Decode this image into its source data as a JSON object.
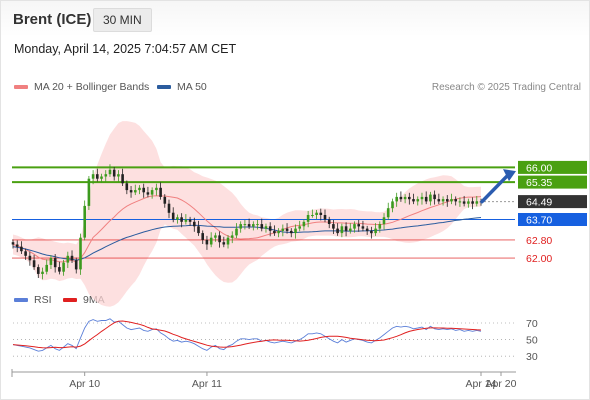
{
  "header": {
    "instrument": "Brent (ICE)",
    "timeframe": "30 MIN",
    "datetime": "Monday, April 14, 2025 7:04:57 AM CET"
  },
  "legend": {
    "ma20": {
      "label": "MA 20 + Bollinger Bands",
      "color": "#f08080"
    },
    "ma50": {
      "label": "MA 50",
      "color": "#2b5c9e"
    },
    "credit": "Research © 2025 Trading Central"
  },
  "rsi_legend": {
    "rsi": {
      "label": "RSI",
      "color": "#5b7fd8"
    },
    "ma9": {
      "label": "9MA",
      "color": "#e02020"
    }
  },
  "chart_data": [
    {
      "type": "candlestick",
      "title": "Brent (ICE)",
      "timeframe": "30 MIN",
      "y_range": [
        60.9,
        68.4
      ],
      "x_tick_labels": [
        "Apr 10",
        "Apr 11",
        "Apr 14",
        "Apr 20"
      ],
      "levels": [
        {
          "value": 66.0,
          "label": "66.00",
          "kind": "resistance",
          "color": "#4aa011"
        },
        {
          "value": 65.35,
          "label": "65.35",
          "kind": "resistance",
          "color": "#4aa011"
        },
        {
          "value": 64.49,
          "label": "64.49",
          "kind": "last",
          "color": "#333333"
        },
        {
          "value": 63.7,
          "label": "63.70",
          "kind": "pivot",
          "color": "#1660e0"
        },
        {
          "value": 62.8,
          "label": "62.80",
          "kind": "support",
          "color": "#e02020"
        },
        {
          "value": 62.0,
          "label": "62.00",
          "kind": "support",
          "color": "#e02020"
        }
      ],
      "closes": [
        62.6,
        62.5,
        62.3,
        62.1,
        61.9,
        61.6,
        61.3,
        61.4,
        61.7,
        62.0,
        61.6,
        61.4,
        61.8,
        62.1,
        61.9,
        61.5,
        62.9,
        64.3,
        65.5,
        65.7,
        65.5,
        65.6,
        65.7,
        65.9,
        65.6,
        65.7,
        65.3,
        65.0,
        64.9,
        65.0,
        65.1,
        64.9,
        64.8,
        65.0,
        65.1,
        64.7,
        64.4,
        64.0,
        63.7,
        63.8,
        63.6,
        63.7,
        63.6,
        63.4,
        63.1,
        62.8,
        62.6,
        62.9,
        63.0,
        62.7,
        62.6,
        62.9,
        63.0,
        63.3,
        63.5,
        63.5,
        63.4,
        63.5,
        63.5,
        63.3,
        63.4,
        63.2,
        63.1,
        63.2,
        63.3,
        63.2,
        63.1,
        63.3,
        63.4,
        63.6,
        63.9,
        63.9,
        64.0,
        63.9,
        63.7,
        63.5,
        63.3,
        63.1,
        63.4,
        63.2,
        63.3,
        63.5,
        63.4,
        63.3,
        63.2,
        63.1,
        63.3,
        63.5,
        63.8,
        64.2,
        64.5,
        64.7,
        64.6,
        64.7,
        64.6,
        64.5,
        64.6,
        64.7,
        64.5,
        64.8,
        64.6,
        64.5,
        64.6,
        64.5,
        64.6,
        64.5,
        64.5,
        64.4,
        64.5,
        64.4,
        64.5,
        64.49
      ],
      "ma20": [
        62.6,
        62.55,
        62.47,
        62.38,
        62.28,
        62.17,
        62.04,
        61.95,
        61.92,
        61.93,
        61.89,
        61.83,
        61.84,
        61.89,
        61.89,
        61.84,
        61.99,
        62.24,
        62.58,
        62.91,
        63.08,
        63.26,
        63.46,
        63.65,
        63.81,
        64.0,
        64.16,
        64.29,
        64.39,
        64.47,
        64.55,
        64.63,
        64.7,
        64.74,
        64.75,
        64.74,
        64.74,
        64.71,
        64.68,
        64.65,
        64.56,
        64.45,
        64.32,
        64.17,
        64.0,
        63.82,
        63.64,
        63.48,
        63.33,
        63.19,
        63.06,
        62.97,
        62.9,
        62.86,
        62.84,
        62.85,
        62.86,
        62.87,
        62.9,
        62.95,
        63.01,
        63.06,
        63.11,
        63.18,
        63.26,
        63.33,
        63.39,
        63.43,
        63.44,
        63.47,
        63.51,
        63.55,
        63.58,
        63.59,
        63.59,
        63.58,
        63.56,
        63.55,
        63.55,
        63.54,
        63.54,
        63.54,
        63.53,
        63.52,
        63.5,
        63.49,
        63.48,
        63.48,
        63.49,
        63.53,
        63.58,
        63.65,
        63.71,
        63.79,
        63.87,
        63.94,
        64.01,
        64.09,
        64.16,
        64.23,
        64.29,
        64.35,
        64.42,
        64.48,
        64.55,
        64.6,
        64.64,
        64.67,
        64.69,
        64.69,
        64.7,
        64.71
      ],
      "ma50": [
        62.5,
        62.48,
        62.44,
        62.4,
        62.35,
        62.3,
        62.24,
        62.18,
        62.13,
        62.1,
        62.06,
        62.01,
        61.98,
        61.96,
        61.94,
        61.91,
        61.94,
        62.01,
        62.11,
        62.22,
        62.31,
        62.4,
        62.5,
        62.59,
        62.68,
        62.76,
        62.84,
        62.91,
        62.97,
        63.03,
        63.09,
        63.15,
        63.2,
        63.25,
        63.3,
        63.34,
        63.37,
        63.39,
        63.4,
        63.41,
        63.42,
        63.43,
        63.44,
        63.44,
        63.44,
        63.43,
        63.41,
        63.4,
        63.39,
        63.38,
        63.36,
        63.36,
        63.36,
        63.36,
        63.37,
        63.37,
        63.37,
        63.37,
        63.36,
        63.34,
        63.31,
        63.28,
        63.24,
        63.19,
        63.15,
        63.14,
        63.13,
        63.13,
        63.14,
        63.15,
        63.15,
        63.16,
        63.17,
        63.19,
        63.2,
        63.2,
        63.2,
        63.2,
        63.2,
        63.19,
        63.19,
        63.19,
        63.19,
        63.2,
        63.2,
        63.21,
        63.22,
        63.23,
        63.24,
        63.26,
        63.28,
        63.31,
        63.33,
        63.36,
        63.38,
        63.4,
        63.42,
        63.45,
        63.47,
        63.5,
        63.52,
        63.55,
        63.57,
        63.6,
        63.63,
        63.66,
        63.68,
        63.71,
        63.73,
        63.75,
        63.77,
        63.79
      ]
    },
    {
      "type": "line",
      "title": "RSI",
      "y_range": [
        17,
        82
      ],
      "y_ticks": [
        70,
        50,
        30
      ],
      "series": [
        {
          "name": "RSI",
          "values": [
            44,
            43,
            42,
            41,
            40,
            38,
            36,
            37,
            40,
            43,
            39,
            37,
            41,
            45,
            43,
            39,
            52,
            64,
            72,
            74,
            72,
            73,
            73,
            75,
            71,
            72,
            68,
            64,
            62,
            63,
            64,
            61,
            60,
            62,
            63,
            58,
            55,
            51,
            48,
            49,
            47,
            48,
            47,
            45,
            42,
            39,
            37,
            41,
            43,
            39,
            38,
            42,
            44,
            48,
            51,
            51,
            50,
            51,
            51,
            48,
            49,
            47,
            46,
            47,
            48,
            47,
            46,
            48,
            50,
            53,
            57,
            57,
            58,
            57,
            54,
            51,
            48,
            46,
            50,
            47,
            49,
            51,
            50,
            49,
            47,
            46,
            49,
            52,
            56,
            60,
            64,
            66,
            65,
            66,
            65,
            63,
            64,
            65,
            62,
            66,
            63,
            62,
            63,
            62,
            63,
            61,
            62,
            60,
            61,
            60,
            61,
            60
          ]
        },
        {
          "name": "9MA",
          "values": [
            44,
            43.5,
            43,
            42.5,
            42,
            41.3,
            40.6,
            40.1,
            40,
            40.4,
            40.7,
            40.4,
            40.4,
            41,
            41.3,
            40.9,
            42.2,
            44.8,
            48.6,
            52.5,
            56,
            59.8,
            63.3,
            67,
            70.2,
            72.1,
            72.4,
            71.7,
            70.7,
            69.5,
            68.4,
            66.8,
            64.7,
            62.9,
            62.1,
            61.3,
            60.3,
            58.5,
            56.4,
            54.7,
            52.5,
            50.8,
            49.2,
            47.8,
            46.4,
            44.8,
            43.2,
            42.2,
            41.6,
            41.1,
            40.8,
            41.1,
            41.6,
            42.4,
            43.4,
            44.6,
            45.6,
            46.5,
            47.4,
            48.1,
            48.9,
            49.4,
            49.6,
            49.4,
            49.3,
            49.1,
            48.8,
            48.5,
            48.2,
            48.5,
            49.3,
            50.2,
            51.3,
            52.6,
            53.4,
            53.9,
            54.1,
            53.9,
            53.5,
            52.6,
            51.6,
            50.9,
            50.3,
            49.8,
            49.3,
            48.9,
            48.7,
            49,
            49.5,
            50.8,
            52.3,
            54,
            55.9,
            58,
            59.9,
            61.1,
            62.1,
            62.9,
            63.6,
            64.1,
            64.1,
            64,
            63.9,
            63.7,
            63.6,
            63.3,
            63.1,
            62.7,
            62.4,
            62.1,
            61.8,
            61.5
          ]
        }
      ]
    }
  ]
}
